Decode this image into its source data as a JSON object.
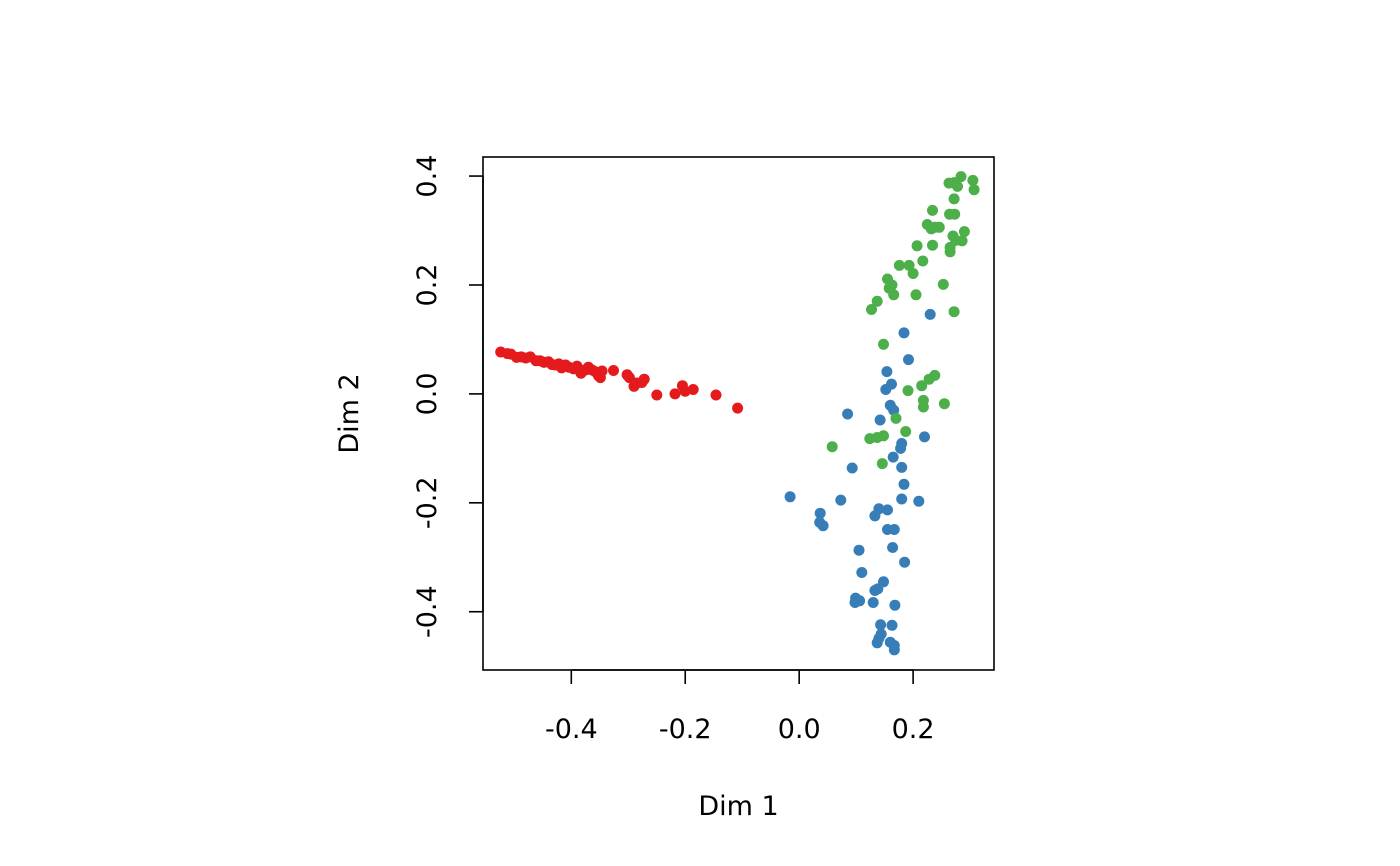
{
  "chart_data": {
    "type": "scatter",
    "title": "",
    "xlabel": "Dim 1",
    "ylabel": "Dim 2",
    "xlim": [
      -0.555,
      0.342
    ],
    "ylim": [
      -0.507,
      0.435
    ],
    "x_ticks": [
      -0.4,
      -0.2,
      0.0,
      0.2
    ],
    "x_tick_labels": [
      "-0.4",
      "-0.2",
      "0.0",
      "0.2"
    ],
    "y_ticks": [
      -0.4,
      -0.2,
      0.0,
      0.2,
      0.4
    ],
    "y_tick_labels": [
      "-0.4",
      "-0.2",
      "0.0",
      "0.2",
      "0.4"
    ],
    "grid": false,
    "legend": "none",
    "series": [
      {
        "color": "#E41A1C",
        "points": [
          [
            -0.524,
            0.077
          ],
          [
            -0.512,
            0.074
          ],
          [
            -0.506,
            0.073
          ],
          [
            -0.496,
            0.067
          ],
          [
            -0.488,
            0.068
          ],
          [
            -0.48,
            0.066
          ],
          [
            -0.472,
            0.068
          ],
          [
            -0.462,
            0.061
          ],
          [
            -0.455,
            0.061
          ],
          [
            -0.448,
            0.058
          ],
          [
            -0.44,
            0.059
          ],
          [
            -0.434,
            0.054
          ],
          [
            -0.428,
            0.053
          ],
          [
            -0.422,
            0.055
          ],
          [
            -0.417,
            0.048
          ],
          [
            -0.41,
            0.053
          ],
          [
            -0.404,
            0.049
          ],
          [
            -0.396,
            0.046
          ],
          [
            -0.39,
            0.051
          ],
          [
            -0.383,
            0.038
          ],
          [
            -0.375,
            0.044
          ],
          [
            -0.37,
            0.049
          ],
          [
            -0.364,
            0.044
          ],
          [
            -0.358,
            0.041
          ],
          [
            -0.352,
            0.033
          ],
          [
            -0.346,
            0.042
          ],
          [
            -0.349,
            0.03
          ],
          [
            -0.326,
            0.043
          ],
          [
            -0.302,
            0.035
          ],
          [
            -0.298,
            0.03
          ],
          [
            -0.29,
            0.014
          ],
          [
            -0.285,
            0.02
          ],
          [
            -0.276,
            0.021
          ],
          [
            -0.272,
            0.027
          ],
          [
            -0.25,
            -0.002
          ],
          [
            -0.218,
            0.0
          ],
          [
            -0.205,
            0.015
          ],
          [
            -0.2,
            0.005
          ],
          [
            -0.186,
            0.008
          ],
          [
            -0.146,
            -0.002
          ],
          [
            -0.108,
            -0.026
          ]
        ]
      },
      {
        "color": "#377EB8",
        "points": [
          [
            0.23,
            0.146
          ],
          [
            0.184,
            0.112
          ],
          [
            0.192,
            0.063
          ],
          [
            0.154,
            0.041
          ],
          [
            0.162,
            0.018
          ],
          [
            0.152,
            0.008
          ],
          [
            0.16,
            -0.021
          ],
          [
            0.166,
            -0.03
          ],
          [
            0.142,
            -0.048
          ],
          [
            0.085,
            -0.037
          ],
          [
            0.22,
            -0.079
          ],
          [
            0.18,
            -0.091
          ],
          [
            0.178,
            -0.1
          ],
          [
            0.165,
            -0.116
          ],
          [
            0.093,
            -0.136
          ],
          [
            0.18,
            -0.135
          ],
          [
            0.184,
            -0.166
          ],
          [
            0.21,
            -0.197
          ],
          [
            0.18,
            -0.193
          ],
          [
            0.073,
            -0.195
          ],
          [
            -0.016,
            -0.189
          ],
          [
            0.155,
            -0.213
          ],
          [
            0.14,
            -0.211
          ],
          [
            0.133,
            -0.224
          ],
          [
            0.037,
            -0.219
          ],
          [
            0.036,
            -0.236
          ],
          [
            0.042,
            -0.242
          ],
          [
            0.167,
            -0.249
          ],
          [
            0.155,
            -0.249
          ],
          [
            0.164,
            -0.282
          ],
          [
            0.105,
            -0.287
          ],
          [
            0.185,
            -0.309
          ],
          [
            0.11,
            -0.328
          ],
          [
            0.148,
            -0.345
          ],
          [
            0.133,
            -0.361
          ],
          [
            0.138,
            -0.358
          ],
          [
            0.099,
            -0.375
          ],
          [
            0.106,
            -0.38
          ],
          [
            0.098,
            -0.383
          ],
          [
            0.13,
            -0.383
          ],
          [
            0.168,
            -0.388
          ],
          [
            0.143,
            -0.424
          ],
          [
            0.163,
            -0.425
          ],
          [
            0.144,
            -0.441
          ],
          [
            0.14,
            -0.449
          ],
          [
            0.137,
            -0.457
          ],
          [
            0.16,
            -0.456
          ],
          [
            0.167,
            -0.462
          ],
          [
            0.167,
            -0.47
          ]
        ]
      },
      {
        "color": "#4DAF4A",
        "points": [
          [
            0.284,
            0.399
          ],
          [
            0.305,
            0.392
          ],
          [
            0.272,
            0.388
          ],
          [
            0.263,
            0.387
          ],
          [
            0.278,
            0.381
          ],
          [
            0.307,
            0.375
          ],
          [
            0.272,
            0.358
          ],
          [
            0.234,
            0.337
          ],
          [
            0.264,
            0.33
          ],
          [
            0.273,
            0.33
          ],
          [
            0.225,
            0.311
          ],
          [
            0.238,
            0.306
          ],
          [
            0.232,
            0.303
          ],
          [
            0.246,
            0.306
          ],
          [
            0.29,
            0.298
          ],
          [
            0.275,
            0.282
          ],
          [
            0.286,
            0.281
          ],
          [
            0.27,
            0.29
          ],
          [
            0.234,
            0.273
          ],
          [
            0.207,
            0.272
          ],
          [
            0.265,
            0.269
          ],
          [
            0.265,
            0.261
          ],
          [
            0.217,
            0.244
          ],
          [
            0.176,
            0.236
          ],
          [
            0.193,
            0.236
          ],
          [
            0.2,
            0.221
          ],
          [
            0.155,
            0.211
          ],
          [
            0.163,
            0.2
          ],
          [
            0.158,
            0.194
          ],
          [
            0.253,
            0.201
          ],
          [
            0.166,
            0.182
          ],
          [
            0.205,
            0.182
          ],
          [
            0.137,
            0.17
          ],
          [
            0.127,
            0.155
          ],
          [
            0.272,
            0.151
          ],
          [
            0.148,
            0.091
          ],
          [
            0.238,
            0.034
          ],
          [
            0.228,
            0.027
          ],
          [
            0.215,
            0.015
          ],
          [
            0.191,
            0.006
          ],
          [
            0.218,
            -0.012
          ],
          [
            0.218,
            -0.024
          ],
          [
            0.255,
            -0.018
          ],
          [
            0.17,
            -0.045
          ],
          [
            0.187,
            -0.069
          ],
          [
            0.148,
            -0.077
          ],
          [
            0.137,
            -0.08
          ],
          [
            0.124,
            -0.082
          ],
          [
            0.058,
            -0.097
          ],
          [
            0.146,
            -0.128
          ]
        ]
      }
    ]
  }
}
